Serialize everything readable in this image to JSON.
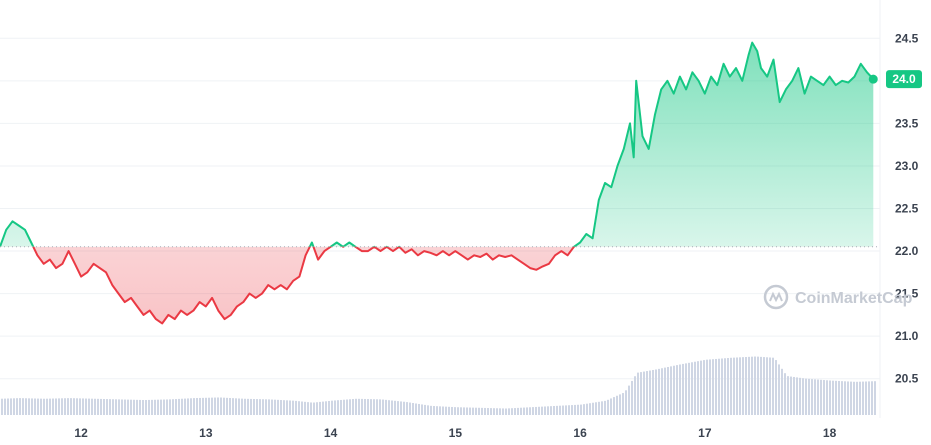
{
  "watermark": "CoinMarketCap",
  "colors": {
    "up": "#16c784",
    "down": "#ea3943",
    "grid": "#eff2f5",
    "baseline": "#a7adb7",
    "volume": "#cfd6e4",
    "last_label_bg": "#16c784"
  },
  "chart_data": {
    "type": "line",
    "title": "",
    "xlabel": "",
    "ylabel": "",
    "x_ticks": [
      "12",
      "13",
      "14",
      "15",
      "16",
      "17",
      "18"
    ],
    "y_ticks": [
      "20.5",
      "21.0",
      "21.5",
      "22.0",
      "22.5",
      "23.0",
      "23.5",
      "24.0",
      "24.5"
    ],
    "ylim": [
      20.05,
      24.95
    ],
    "xlim": [
      11.35,
      18.38
    ],
    "baseline": 22.05,
    "last_value_label": "24.0",
    "series": [
      {
        "values": [
          [
            11.35,
            22.05
          ],
          [
            11.4,
            22.25
          ],
          [
            11.45,
            22.35
          ],
          [
            11.5,
            22.3
          ],
          [
            11.55,
            22.25
          ],
          [
            11.6,
            22.1
          ],
          [
            11.65,
            21.95
          ],
          [
            11.7,
            21.85
          ],
          [
            11.75,
            21.9
          ],
          [
            11.8,
            21.8
          ],
          [
            11.85,
            21.85
          ],
          [
            11.9,
            22.0
          ],
          [
            11.95,
            21.85
          ],
          [
            12.0,
            21.7
          ],
          [
            12.05,
            21.75
          ],
          [
            12.1,
            21.85
          ],
          [
            12.15,
            21.8
          ],
          [
            12.2,
            21.75
          ],
          [
            12.25,
            21.6
          ],
          [
            12.3,
            21.5
          ],
          [
            12.35,
            21.4
          ],
          [
            12.4,
            21.45
          ],
          [
            12.45,
            21.35
          ],
          [
            12.5,
            21.25
          ],
          [
            12.55,
            21.3
          ],
          [
            12.6,
            21.2
          ],
          [
            12.65,
            21.15
          ],
          [
            12.7,
            21.25
          ],
          [
            12.75,
            21.2
          ],
          [
            12.8,
            21.3
          ],
          [
            12.85,
            21.25
          ],
          [
            12.9,
            21.3
          ],
          [
            12.95,
            21.4
          ],
          [
            13.0,
            21.35
          ],
          [
            13.05,
            21.45
          ],
          [
            13.1,
            21.3
          ],
          [
            13.15,
            21.2
          ],
          [
            13.2,
            21.25
          ],
          [
            13.25,
            21.35
          ],
          [
            13.3,
            21.4
          ],
          [
            13.35,
            21.5
          ],
          [
            13.4,
            21.45
          ],
          [
            13.45,
            21.5
          ],
          [
            13.5,
            21.6
          ],
          [
            13.55,
            21.55
          ],
          [
            13.6,
            21.6
          ],
          [
            13.65,
            21.55
          ],
          [
            13.7,
            21.65
          ],
          [
            13.75,
            21.7
          ],
          [
            13.8,
            21.95
          ],
          [
            13.85,
            22.1
          ],
          [
            13.9,
            21.9
          ],
          [
            13.95,
            22.0
          ],
          [
            14.0,
            22.05
          ],
          [
            14.05,
            22.1
          ],
          [
            14.1,
            22.05
          ],
          [
            14.15,
            22.1
          ],
          [
            14.2,
            22.05
          ],
          [
            14.25,
            22.0
          ],
          [
            14.3,
            22.0
          ],
          [
            14.35,
            22.05
          ],
          [
            14.4,
            22.0
          ],
          [
            14.45,
            22.05
          ],
          [
            14.5,
            22.0
          ],
          [
            14.55,
            22.05
          ],
          [
            14.6,
            21.98
          ],
          [
            14.65,
            22.02
          ],
          [
            14.7,
            21.95
          ],
          [
            14.75,
            22.0
          ],
          [
            14.8,
            21.98
          ],
          [
            14.85,
            21.95
          ],
          [
            14.9,
            22.0
          ],
          [
            14.95,
            21.95
          ],
          [
            15.0,
            22.0
          ],
          [
            15.05,
            21.95
          ],
          [
            15.1,
            21.9
          ],
          [
            15.15,
            21.95
          ],
          [
            15.2,
            21.93
          ],
          [
            15.25,
            21.97
          ],
          [
            15.3,
            21.9
          ],
          [
            15.35,
            21.95
          ],
          [
            15.4,
            21.93
          ],
          [
            15.45,
            21.95
          ],
          [
            15.5,
            21.9
          ],
          [
            15.55,
            21.85
          ],
          [
            15.6,
            21.8
          ],
          [
            15.65,
            21.78
          ],
          [
            15.7,
            21.82
          ],
          [
            15.75,
            21.85
          ],
          [
            15.8,
            21.95
          ],
          [
            15.85,
            22.0
          ],
          [
            15.9,
            21.95
          ],
          [
            15.95,
            22.05
          ],
          [
            16.0,
            22.1
          ],
          [
            16.05,
            22.2
          ],
          [
            16.1,
            22.15
          ],
          [
            16.15,
            22.6
          ],
          [
            16.2,
            22.8
          ],
          [
            16.25,
            22.75
          ],
          [
            16.3,
            23.0
          ],
          [
            16.35,
            23.2
          ],
          [
            16.4,
            23.5
          ],
          [
            16.43,
            23.1
          ],
          [
            16.45,
            24.0
          ],
          [
            16.5,
            23.35
          ],
          [
            16.55,
            23.2
          ],
          [
            16.6,
            23.6
          ],
          [
            16.65,
            23.9
          ],
          [
            16.7,
            24.0
          ],
          [
            16.75,
            23.85
          ],
          [
            16.8,
            24.05
          ],
          [
            16.85,
            23.9
          ],
          [
            16.9,
            24.1
          ],
          [
            16.95,
            24.0
          ],
          [
            17.0,
            23.85
          ],
          [
            17.05,
            24.05
          ],
          [
            17.1,
            23.95
          ],
          [
            17.15,
            24.2
          ],
          [
            17.2,
            24.05
          ],
          [
            17.25,
            24.15
          ],
          [
            17.3,
            24.0
          ],
          [
            17.35,
            24.3
          ],
          [
            17.38,
            24.45
          ],
          [
            17.42,
            24.35
          ],
          [
            17.45,
            24.15
          ],
          [
            17.5,
            24.05
          ],
          [
            17.55,
            24.25
          ],
          [
            17.6,
            23.75
          ],
          [
            17.65,
            23.9
          ],
          [
            17.7,
            24.0
          ],
          [
            17.75,
            24.15
          ],
          [
            17.8,
            23.85
          ],
          [
            17.85,
            24.05
          ],
          [
            17.9,
            24.0
          ],
          [
            17.95,
            23.95
          ],
          [
            18.0,
            24.05
          ],
          [
            18.05,
            23.95
          ],
          [
            18.1,
            24.0
          ],
          [
            18.15,
            23.98
          ],
          [
            18.2,
            24.05
          ],
          [
            18.25,
            24.2
          ],
          [
            18.3,
            24.1
          ],
          [
            18.35,
            24.02
          ]
        ]
      }
    ],
    "volume": [
      [
        11.35,
        0.25
      ],
      [
        11.5,
        0.26
      ],
      [
        11.7,
        0.25
      ],
      [
        11.9,
        0.26
      ],
      [
        12.1,
        0.25
      ],
      [
        12.3,
        0.24
      ],
      [
        12.5,
        0.23
      ],
      [
        12.7,
        0.24
      ],
      [
        12.9,
        0.26
      ],
      [
        13.1,
        0.27
      ],
      [
        13.3,
        0.25
      ],
      [
        13.5,
        0.24
      ],
      [
        13.7,
        0.22
      ],
      [
        13.85,
        0.19
      ],
      [
        14.0,
        0.22
      ],
      [
        14.2,
        0.25
      ],
      [
        14.4,
        0.24
      ],
      [
        14.6,
        0.2
      ],
      [
        14.8,
        0.14
      ],
      [
        15.0,
        0.12
      ],
      [
        15.2,
        0.11
      ],
      [
        15.4,
        0.1
      ],
      [
        15.6,
        0.12
      ],
      [
        15.8,
        0.14
      ],
      [
        16.0,
        0.16
      ],
      [
        16.2,
        0.22
      ],
      [
        16.35,
        0.35
      ],
      [
        16.45,
        0.65
      ],
      [
        16.6,
        0.7
      ],
      [
        16.8,
        0.78
      ],
      [
        17.0,
        0.85
      ],
      [
        17.2,
        0.88
      ],
      [
        17.4,
        0.9
      ],
      [
        17.55,
        0.88
      ],
      [
        17.65,
        0.6
      ],
      [
        17.8,
        0.56
      ],
      [
        18.0,
        0.53
      ],
      [
        18.2,
        0.51
      ],
      [
        18.35,
        0.52
      ]
    ]
  }
}
